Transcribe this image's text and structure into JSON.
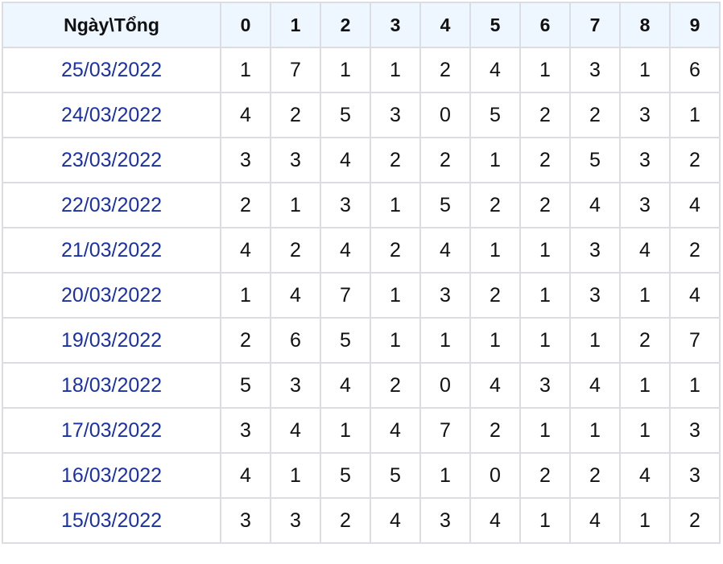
{
  "header": {
    "first": "Ngày\\Tổng",
    "digits": [
      "0",
      "1",
      "2",
      "3",
      "4",
      "5",
      "6",
      "7",
      "8",
      "9"
    ]
  },
  "colors": {
    "date_text": "#1a31a8",
    "header_bg": "#eef6ff",
    "border": "#dcdde2"
  },
  "rows": [
    {
      "date": "25/03/2022",
      "values": [
        "1",
        "7",
        "1",
        "1",
        "2",
        "4",
        "1",
        "3",
        "1",
        "6"
      ]
    },
    {
      "date": "24/03/2022",
      "values": [
        "4",
        "2",
        "5",
        "3",
        "0",
        "5",
        "2",
        "2",
        "3",
        "1"
      ]
    },
    {
      "date": "23/03/2022",
      "values": [
        "3",
        "3",
        "4",
        "2",
        "2",
        "1",
        "2",
        "5",
        "3",
        "2"
      ]
    },
    {
      "date": "22/03/2022",
      "values": [
        "2",
        "1",
        "3",
        "1",
        "5",
        "2",
        "2",
        "4",
        "3",
        "4"
      ]
    },
    {
      "date": "21/03/2022",
      "values": [
        "4",
        "2",
        "4",
        "2",
        "4",
        "1",
        "1",
        "3",
        "4",
        "2"
      ]
    },
    {
      "date": "20/03/2022",
      "values": [
        "1",
        "4",
        "7",
        "1",
        "3",
        "2",
        "1",
        "3",
        "1",
        "4"
      ]
    },
    {
      "date": "19/03/2022",
      "values": [
        "2",
        "6",
        "5",
        "1",
        "1",
        "1",
        "1",
        "1",
        "2",
        "7"
      ]
    },
    {
      "date": "18/03/2022",
      "values": [
        "5",
        "3",
        "4",
        "2",
        "0",
        "4",
        "3",
        "4",
        "1",
        "1"
      ]
    },
    {
      "date": "17/03/2022",
      "values": [
        "3",
        "4",
        "1",
        "4",
        "7",
        "2",
        "1",
        "1",
        "1",
        "3"
      ]
    },
    {
      "date": "16/03/2022",
      "values": [
        "4",
        "1",
        "5",
        "5",
        "1",
        "0",
        "2",
        "2",
        "4",
        "3"
      ]
    },
    {
      "date": "15/03/2022",
      "values": [
        "3",
        "3",
        "2",
        "4",
        "3",
        "4",
        "1",
        "4",
        "1",
        "2"
      ]
    }
  ]
}
